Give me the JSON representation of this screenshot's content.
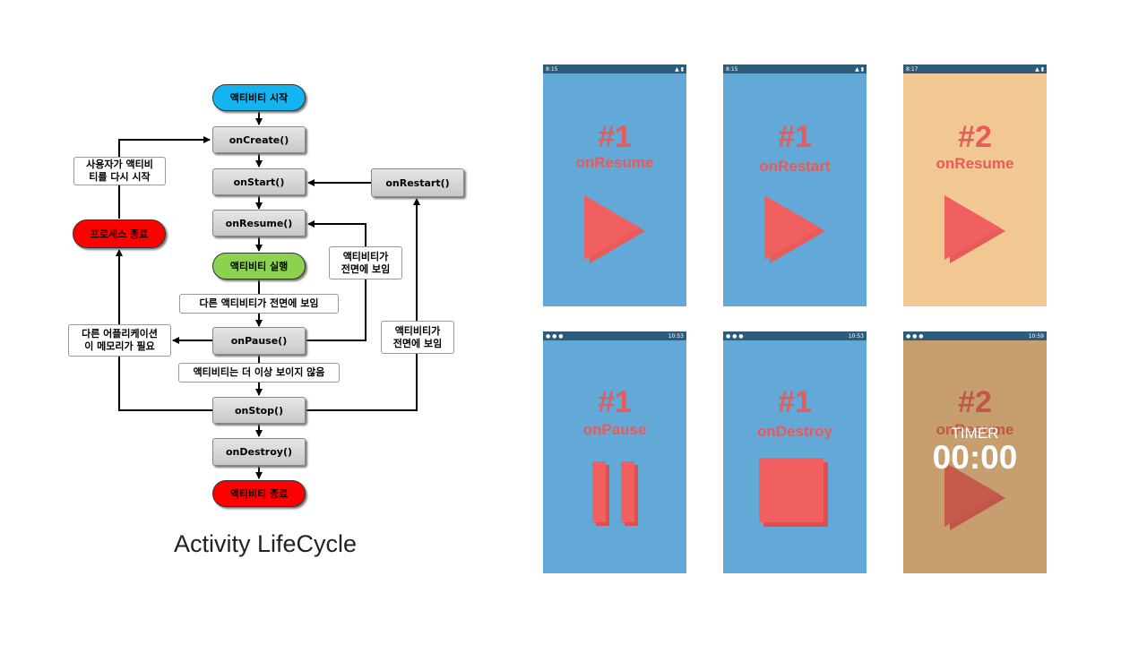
{
  "diagram": {
    "nodes": {
      "start": "액티비티 시작",
      "onCreate": "onCreate()",
      "onStart": "onStart()",
      "onRestart": "onRestart()",
      "onResume": "onResume()",
      "running": "액티비티 실행",
      "onPause": "onPause()",
      "onStop": "onStop()",
      "onDestroy": "onDestroy()",
      "end": "액티비티 종료",
      "killed": "프로세스 종료"
    },
    "notes": {
      "restart_user": "사용자가 액티비\n티를 다시 시작",
      "front_resume": "액티비티가\n전면에 보임",
      "other_front": "다른 액티비티가 전면에 보임",
      "memory": "다른 어플리케이션\n이 메모리가 필요",
      "front_restart": "액티비티가\n전면에 보임",
      "not_visible": "액티비티는 더 이상 보이지 않음"
    },
    "caption": "Activity LifeCycle"
  },
  "phones": [
    {
      "number": "#1",
      "label": "onResume",
      "icon": "play-icon",
      "bg": "#62a9d7",
      "time": "8:15"
    },
    {
      "number": "#1",
      "label": "onRestart",
      "icon": "play-icon",
      "bg": "#62a9d7",
      "time": "8:15"
    },
    {
      "number": "#2",
      "label": "onResume",
      "icon": "play-icon",
      "bg": "#f1c892",
      "time": "8:17"
    },
    {
      "number": "#1",
      "label": "onPause",
      "icon": "pause-icon",
      "bg": "#62a9d7",
      "time": "10:53"
    },
    {
      "number": "#1",
      "label": "onDestroy",
      "icon": "stop-icon",
      "bg": "#62a9d7",
      "time": "10:53"
    },
    {
      "number": "#2",
      "label": "onResume",
      "icon": "play-icon",
      "bg": "#f1c892",
      "time": "10:59",
      "timer_label": "TIMER",
      "timer_value": "00:00"
    }
  ],
  "colors": {
    "accent_red": "#e85b5b",
    "start_blue": "#14b4f0",
    "running_green": "#8cd250",
    "end_red": "#ff0000",
    "statusbar": "#2d5b7a"
  }
}
